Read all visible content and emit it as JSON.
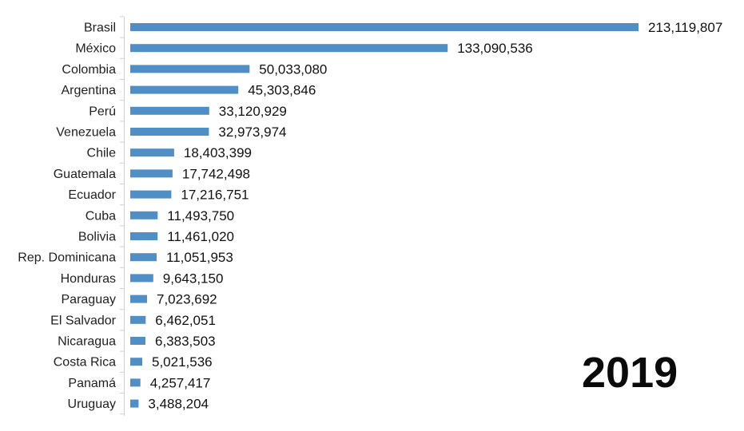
{
  "chart_data": {
    "type": "bar",
    "orientation": "horizontal",
    "categories": [
      "Brasil",
      "México",
      "Colombia",
      "Argentina",
      "Perú",
      "Venezuela",
      "Chile",
      "Guatemala",
      "Ecuador",
      "Cuba",
      "Bolivia",
      "Rep. Dominicana",
      "Honduras",
      "Paraguay",
      "El Salvador",
      "Nicaragua",
      "Costa Rica",
      "Panamá",
      "Uruguay"
    ],
    "values": [
      213119807,
      133090536,
      50033080,
      45303846,
      33120929,
      32973974,
      18403399,
      17742498,
      17216751,
      11493750,
      11461020,
      11051953,
      9643150,
      7023692,
      6462051,
      6383503,
      5021536,
      4257417,
      3488204
    ],
    "value_labels": [
      "213,119,807",
      "133,090,536",
      "50,033,080",
      "45,303,846",
      "33,120,929",
      "32,973,974",
      "18,403,399",
      "17,742,498",
      "17,216,751",
      "11,493,750",
      "11,461,020",
      "11,051,953",
      "9,643,150",
      "7,023,692",
      "6,462,051",
      "6,383,503",
      "5,021,536",
      "4,257,417",
      "3,488,204"
    ],
    "title": "",
    "xlabel": "",
    "ylabel": "",
    "xlim": [
      0,
      213119807
    ],
    "grid": false,
    "bar_color": "#4f8fc6"
  },
  "year": "2019"
}
